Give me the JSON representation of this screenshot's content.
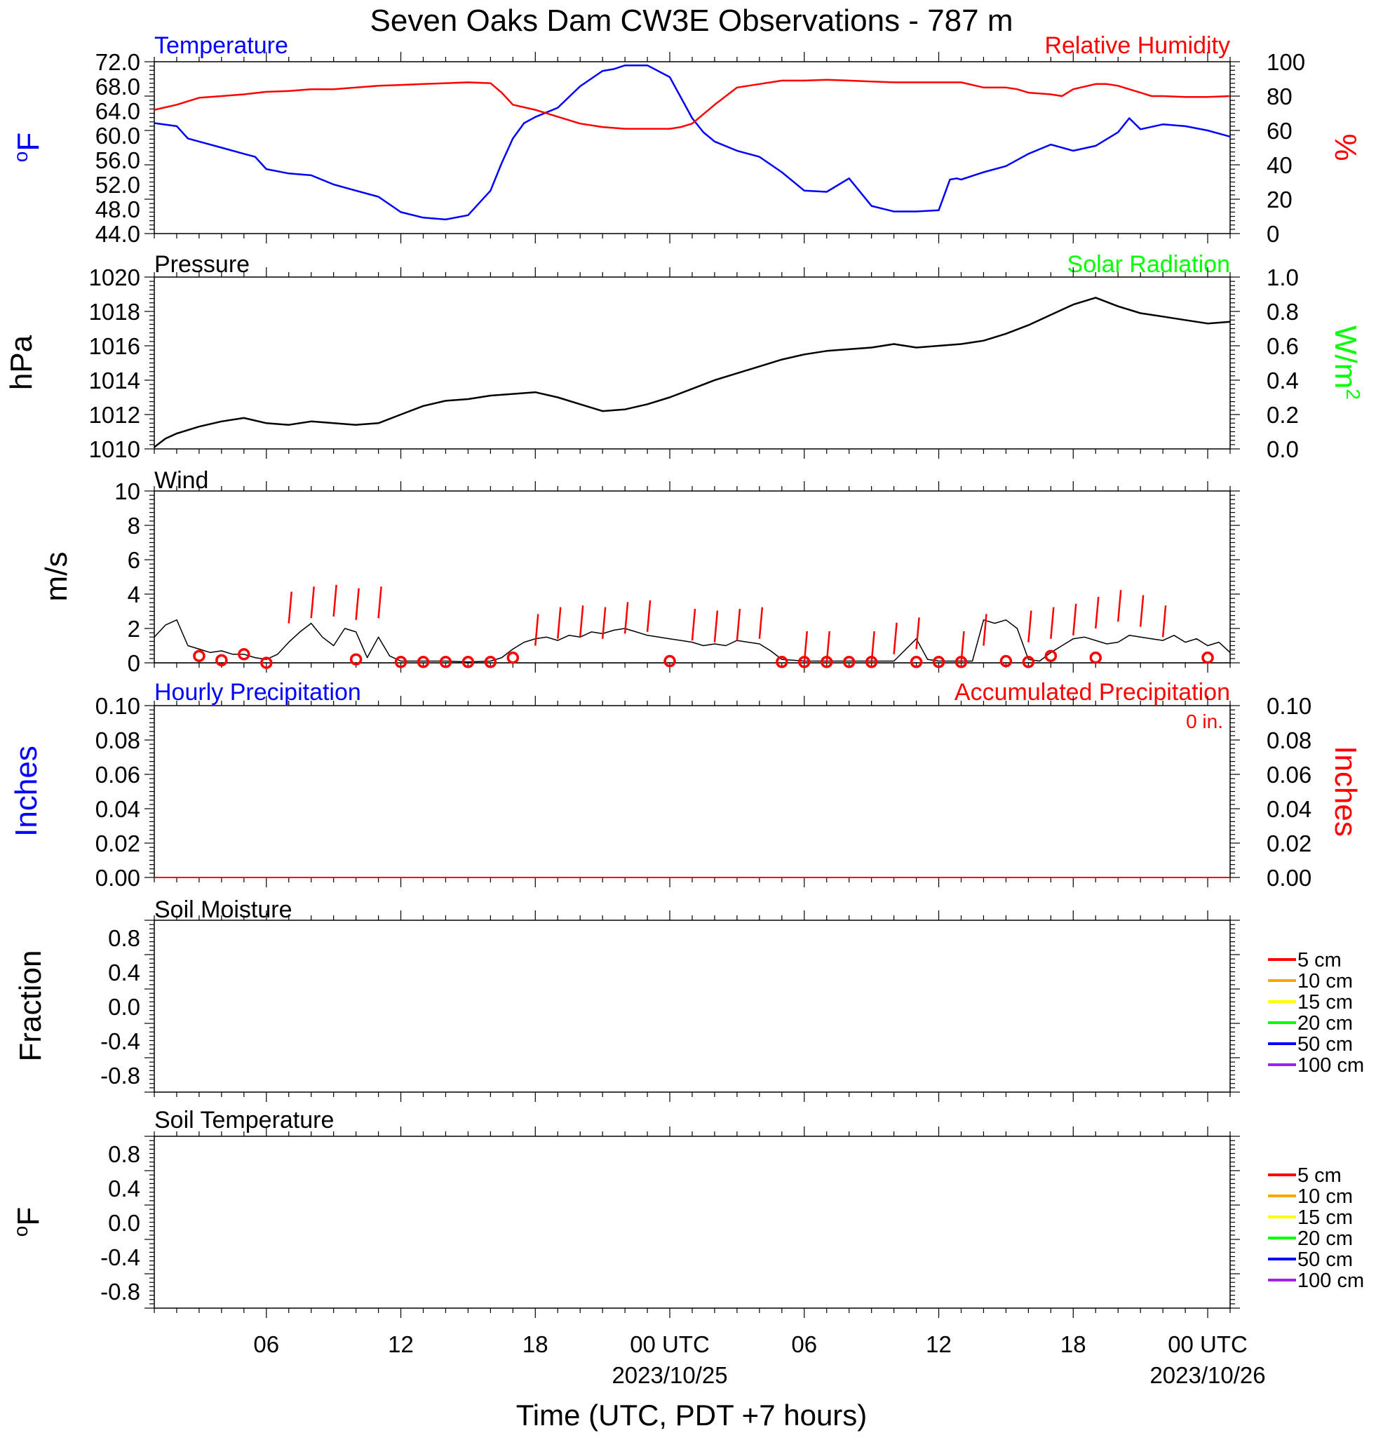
{
  "title": "Seven Oaks Dam CW3E Observations - 787 m",
  "xlabel": "Time (UTC, PDT +7 hours)",
  "x_axis": {
    "tick_labels": [
      "06",
      "12",
      "18",
      "00 UTC",
      "06",
      "12",
      "18",
      "00 UTC"
    ],
    "tick_hours": [
      6,
      12,
      18,
      24,
      30,
      36,
      42,
      48
    ],
    "date_labels": [
      "2023/10/25",
      "2023/10/26"
    ],
    "date_hours": [
      24,
      48
    ],
    "xlim_hours": [
      1,
      49
    ]
  },
  "colors": {
    "blue": "#0000ff",
    "red": "#ff0000",
    "green": "#00ff00",
    "black": "#000000"
  },
  "panels": {
    "temp": {
      "left_title": "Temperature",
      "right_title": "Relative Humidity",
      "ylabel_left": "F",
      "ylabel_left_sup": "o",
      "ylabel_right": "%",
      "yticks_left": [
        "72.0",
        "68.0",
        "64.0",
        "60.0",
        "56.0",
        "52.0",
        "48.0",
        "44.0"
      ],
      "yticks_right": [
        "100",
        "80",
        "60",
        "40",
        "20",
        "0"
      ]
    },
    "pressure": {
      "left_title": "Pressure",
      "right_title": "Solar Radiation",
      "ylabel_left": "hPa",
      "ylabel_right": "W/m",
      "ylabel_right_sup": "2",
      "yticks_left": [
        "1020",
        "1018",
        "1016",
        "1014",
        "1012",
        "1010"
      ],
      "yticks_right": [
        "1.0",
        "0.8",
        "0.6",
        "0.4",
        "0.2",
        "0.0"
      ]
    },
    "wind": {
      "left_title": "Wind",
      "ylabel_left": "m/s",
      "yticks_left": [
        "10",
        "8",
        "6",
        "4",
        "2",
        "0"
      ]
    },
    "precip": {
      "left_title": "Hourly Precipitation",
      "right_title": "Accumulated Precipitation",
      "ylabel_left": "Inches",
      "ylabel_right": "Inches",
      "annotation": "0 in.",
      "yticks_left": [
        "0.10",
        "0.08",
        "0.06",
        "0.04",
        "0.02",
        "0.00"
      ],
      "yticks_right": [
        "0.10",
        "0.08",
        "0.06",
        "0.04",
        "0.02",
        "0.00"
      ]
    },
    "soil_moisture": {
      "left_title": "Soil Moisture",
      "ylabel_left": "Fraction",
      "yticks_left": [
        "0.8",
        "0.4",
        "0.0",
        "-0.4",
        "-0.8"
      ]
    },
    "soil_temp": {
      "left_title": "Soil Temperature",
      "ylabel_left": "F",
      "ylabel_left_sup": "o",
      "yticks_left": [
        "0.8",
        "0.4",
        "0.0",
        "-0.4",
        "-0.8"
      ]
    }
  },
  "soil_legend": [
    {
      "label": "5 cm",
      "color": "#ff0000"
    },
    {
      "label": "10 cm",
      "color": "#ffa500"
    },
    {
      "label": "15 cm",
      "color": "#ffff00"
    },
    {
      "label": "20 cm",
      "color": "#00ff00"
    },
    {
      "label": "50 cm",
      "color": "#0000ff"
    },
    {
      "label": "100 cm",
      "color": "#a020f0"
    }
  ],
  "chart_data": [
    {
      "type": "line",
      "title": "Temperature",
      "ylabel": "oF",
      "ylim": [
        44,
        72
      ],
      "x_units": "hours since 2023/10/24 00 UTC",
      "series": [
        {
          "name": "Temperature",
          "color": "#0000ff",
          "x": [
            1,
            2,
            2.5,
            3,
            4,
            5,
            5.5,
            6,
            7,
            8,
            9,
            10,
            11,
            12,
            13,
            14,
            15,
            15.5,
            16,
            16.5,
            17,
            17.5,
            18,
            19,
            20,
            21,
            21.5,
            22,
            22.5,
            23,
            24,
            25,
            25.5,
            26,
            27,
            28,
            29,
            30,
            31,
            32,
            33,
            34,
            35,
            36,
            36.5,
            36.8,
            37,
            38,
            39,
            40,
            41,
            42,
            43,
            44,
            44.5,
            45,
            46,
            47,
            48,
            49
          ],
          "y": [
            62,
            61.5,
            59.5,
            59,
            58,
            57,
            56.5,
            54.5,
            53.8,
            53.5,
            52,
            51,
            50,
            47.5,
            46.6,
            46.3,
            47,
            49,
            51,
            55.5,
            59.5,
            62,
            63,
            64.5,
            68,
            70.5,
            70.8,
            71.4,
            71.4,
            71.4,
            69.5,
            62.8,
            60.5,
            59,
            57.5,
            56.5,
            54,
            51,
            50.8,
            53,
            48.5,
            47.6,
            47.6,
            47.8,
            52.8,
            53,
            52.8,
            54,
            55,
            57,
            58.5,
            57.5,
            58.3,
            60.5,
            62.8,
            61,
            61.8,
            61.5,
            60.8,
            59.8
          ]
        }
      ]
    },
    {
      "type": "line",
      "title": "Relative Humidity",
      "ylabel": "%",
      "ylim": [
        0,
        100
      ],
      "x_units": "hours since 2023/10/24 00 UTC",
      "series": [
        {
          "name": "Relative Humidity",
          "color": "#ff0000",
          "x": [
            1,
            2,
            3,
            4,
            5,
            6,
            7,
            8,
            9,
            10,
            11,
            12,
            13,
            14,
            15,
            16,
            16.5,
            17,
            18,
            19,
            20,
            21,
            22,
            23,
            24,
            24.5,
            25,
            26,
            27,
            28,
            29,
            30,
            31,
            32,
            33,
            34,
            35,
            36,
            37,
            38,
            39,
            39.5,
            40,
            41,
            41.5,
            42,
            43,
            43.5,
            44,
            45,
            45.5,
            46,
            47,
            48,
            49
          ],
          "y": [
            72,
            75,
            79,
            80,
            81,
            82.5,
            83,
            84,
            84,
            85,
            86,
            86.5,
            87,
            87.5,
            88,
            87.5,
            82,
            75,
            72,
            68,
            64,
            62,
            61,
            61,
            61,
            62,
            64,
            75,
            85,
            87,
            89,
            89,
            89.5,
            89,
            88.5,
            88,
            88,
            88,
            88,
            85,
            85,
            84,
            82,
            81,
            80,
            84,
            87,
            87,
            86,
            82,
            80,
            80,
            79.5,
            79.5,
            80
          ]
        }
      ]
    },
    {
      "type": "line",
      "title": "Pressure",
      "ylabel": "hPa",
      "ylim": [
        1010,
        1020
      ],
      "x_units": "hours since 2023/10/24 00 UTC",
      "series": [
        {
          "name": "Pressure",
          "color": "#000000",
          "x": [
            1,
            1.5,
            2,
            3,
            4,
            5,
            6,
            7,
            8,
            9,
            10,
            11,
            12,
            13,
            14,
            15,
            16,
            17,
            18,
            19,
            20,
            21,
            22,
            23,
            24,
            25,
            26,
            27,
            28,
            29,
            30,
            31,
            32,
            33,
            34,
            35,
            36,
            37,
            38,
            39,
            40,
            41,
            42,
            43,
            44,
            45,
            46,
            47,
            48,
            49
          ],
          "y": [
            1010.1,
            1010.6,
            1010.9,
            1011.3,
            1011.6,
            1011.8,
            1011.5,
            1011.4,
            1011.6,
            1011.5,
            1011.4,
            1011.5,
            1012,
            1012.5,
            1012.8,
            1012.9,
            1013.1,
            1013.2,
            1013.3,
            1013,
            1012.6,
            1012.2,
            1012.3,
            1012.6,
            1013,
            1013.5,
            1014,
            1014.4,
            1014.8,
            1015.2,
            1015.5,
            1015.7,
            1015.8,
            1015.9,
            1016.1,
            1015.9,
            1016,
            1016.1,
            1016.3,
            1016.7,
            1017.2,
            1017.8,
            1018.4,
            1018.8,
            1018.3,
            1017.9,
            1017.7,
            1017.5,
            1017.3,
            1017.4
          ]
        }
      ]
    },
    {
      "type": "line",
      "title": "Wind",
      "ylabel": "m/s",
      "ylim": [
        0,
        10
      ],
      "x_units": "hours since 2023/10/24 00 UTC",
      "series": [
        {
          "name": "Wind",
          "color": "#000000",
          "x": [
            1,
            1.5,
            2,
            2.5,
            3,
            3.5,
            4,
            4.5,
            5,
            5.5,
            6,
            6.5,
            7,
            7.5,
            8,
            8.5,
            9,
            9.5,
            10,
            10.5,
            11,
            11.5,
            12,
            13,
            14,
            15,
            16,
            16.5,
            17,
            17.5,
            18,
            18.5,
            19,
            19.5,
            20,
            20.5,
            21,
            21.5,
            22,
            22.5,
            23,
            23.5,
            24,
            24.5,
            25,
            25.5,
            26,
            26.5,
            27,
            27.5,
            28,
            28.5,
            29,
            30,
            31,
            32,
            33,
            34,
            35,
            35.5,
            36,
            36.5,
            37,
            37.5,
            38,
            38.5,
            39,
            39.5,
            40,
            40.5,
            41,
            41.5,
            42,
            42.5,
            43,
            43.5,
            44,
            44.5,
            45,
            45.5,
            46,
            46.5,
            47,
            47.5,
            48,
            48.5,
            49
          ],
          "y": [
            1.5,
            2.2,
            2.5,
            1.0,
            0.8,
            0.6,
            0.7,
            0.5,
            0.5,
            0.3,
            0.2,
            0.5,
            1.2,
            1.8,
            2.3,
            1.5,
            1.0,
            2.0,
            1.8,
            0.3,
            1.5,
            0.4,
            0.1,
            0.1,
            0.1,
            0.05,
            0.1,
            0.3,
            0.8,
            1.2,
            1.4,
            1.5,
            1.3,
            1.6,
            1.5,
            1.8,
            1.7,
            1.9,
            2.0,
            1.8,
            1.6,
            1.5,
            1.4,
            1.3,
            1.2,
            1.0,
            1.1,
            1.0,
            1.3,
            1.2,
            1.1,
            0.7,
            0.2,
            0.1,
            0.1,
            0.1,
            0.1,
            0.1,
            1.4,
            0.2,
            0.1,
            0.1,
            0.1,
            0.1,
            2.5,
            2.3,
            2.5,
            2.0,
            0.2,
            0.1,
            0.6,
            1.0,
            1.4,
            1.5,
            1.3,
            1.1,
            1.2,
            1.6,
            1.5,
            1.4,
            1.3,
            1.6,
            1.2,
            1.4,
            1.0,
            1.2,
            0.6
          ]
        },
        {
          "name": "Gust markers",
          "color": "#ff0000",
          "x": [
            3,
            4,
            5,
            6,
            10,
            12,
            13,
            14,
            15,
            16,
            17,
            24,
            29,
            30,
            31,
            32,
            33,
            35,
            36,
            37,
            39,
            40,
            41,
            43,
            48
          ],
          "y": [
            0.4,
            0.15,
            0.5,
            0.0,
            0.2,
            0.05,
            0.05,
            0.05,
            0.05,
            0.05,
            0.3,
            0.1,
            0.05,
            0.05,
            0.05,
            0.05,
            0.05,
            0.05,
            0.05,
            0.05,
            0.1,
            0.05,
            0.4,
            0.3,
            0.3
          ]
        },
        {
          "name": "Wind barbs",
          "color": "#ff0000",
          "x": [
            7,
            8,
            9,
            10,
            11,
            18,
            19,
            20,
            21,
            22,
            23,
            25,
            26,
            27,
            28,
            30,
            31,
            33,
            34,
            35,
            37,
            38,
            40,
            41,
            42,
            43,
            44,
            45,
            46
          ],
          "y": [
            2.3,
            2.6,
            2.7,
            2.5,
            2.6,
            1.0,
            1.4,
            1.5,
            1.4,
            1.7,
            1.8,
            1.3,
            1.2,
            1.3,
            1.4,
            0.0,
            0.0,
            0.0,
            0.5,
            0.8,
            0.0,
            1.0,
            1.2,
            1.4,
            1.6,
            2.0,
            2.4,
            2.1,
            1.5
          ]
        }
      ]
    },
    {
      "type": "line",
      "title": "Hourly Precipitation",
      "ylabel": "Inches",
      "ylim": [
        0,
        0.1
      ],
      "x_units": "hours since 2023/10/24 00 UTC",
      "series": [
        {
          "name": "Hourly Precipitation",
          "color": "#0000ff",
          "x": [
            1,
            49
          ],
          "y": [
            0,
            0
          ]
        },
        {
          "name": "Accumulated Precipitation",
          "color": "#ff0000",
          "x": [
            1,
            49
          ],
          "y": [
            0,
            0
          ]
        }
      ]
    },
    {
      "type": "line",
      "title": "Soil Moisture",
      "ylabel": "Fraction",
      "ylim": [
        -1,
        1
      ],
      "series": []
    },
    {
      "type": "line",
      "title": "Soil Temperature",
      "ylabel": "oF",
      "ylim": [
        -1,
        1
      ],
      "series": []
    }
  ]
}
